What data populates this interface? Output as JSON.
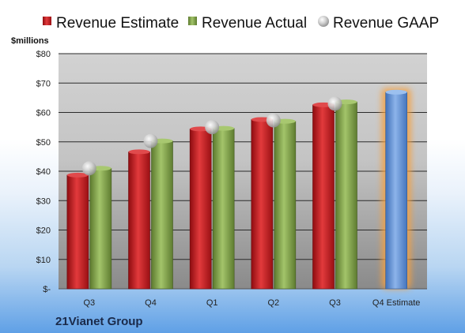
{
  "chart_data": {
    "type": "bar",
    "unit_label": "$millions",
    "company": "21Vianet Group",
    "categories": [
      "Q3",
      "Q4",
      "Q1",
      "Q2",
      "Q3",
      "Q4 Estimate"
    ],
    "ylim": [
      0,
      80
    ],
    "yticks": [
      0,
      10,
      20,
      30,
      40,
      50,
      60,
      70,
      80
    ],
    "ytick_labels": [
      "$-",
      "$10",
      "$20",
      "$30",
      "$40",
      "$50",
      "$60",
      "$70",
      "$80"
    ],
    "grid": true,
    "legend_position": "top",
    "series": [
      {
        "name": "Revenue Estimate",
        "kind": "bar",
        "color": "#c0181e",
        "values": [
          38.7,
          46.6,
          54.4,
          57.6,
          62.6,
          null
        ]
      },
      {
        "name": "Revenue Actual",
        "kind": "bar",
        "color": "#7fa04b",
        "values": [
          41.0,
          50.3,
          54.6,
          57.0,
          63.6,
          null
        ]
      },
      {
        "name": "Revenue GAAP",
        "kind": "marker",
        "color": "#b8b8b8",
        "values": [
          41.0,
          50.3,
          55.0,
          57.3,
          63.0,
          null
        ]
      }
    ],
    "forecast": {
      "category": "Q4 Estimate",
      "value": 66.9,
      "color": "#5b8fd6",
      "glow": "#f5a040"
    }
  }
}
